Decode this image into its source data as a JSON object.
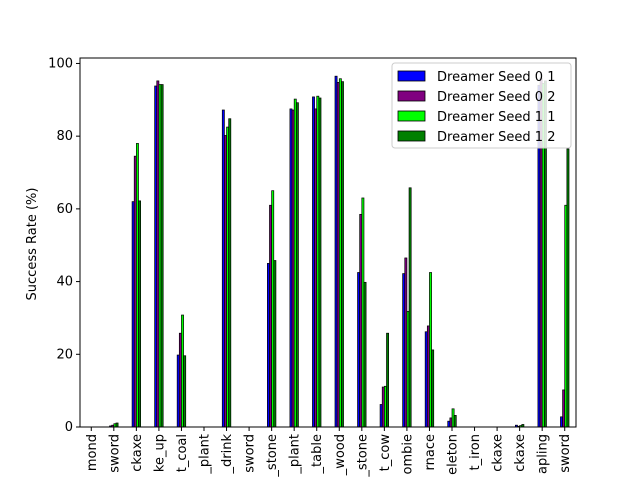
{
  "chart_data": {
    "type": "bar",
    "title": "",
    "xlabel": "",
    "ylabel": "Success Rate (%)",
    "ylim": [
      0,
      101.5
    ],
    "yticks": [
      0,
      20,
      40,
      60,
      80,
      100
    ],
    "grid": false,
    "legend_position": "top-right",
    "categories": [
      "mond",
      "sword",
      "ckaxe",
      "ke_up",
      "t_coal",
      "_plant",
      "_drink",
      "sword",
      "_stone",
      "_plant",
      "_table",
      "_wood",
      "_stone",
      "t_cow",
      "ombie",
      "rnace",
      "eleton",
      "t_iron",
      "ckaxe",
      "ckaxe",
      "apling",
      "sword"
    ],
    "series": [
      {
        "name": "Dreamer Seed 0 1",
        "color": "#0000ff",
        "values": [
          0,
          0.3,
          62,
          93.8,
          19.8,
          0,
          87.2,
          0,
          45,
          87.5,
          90.8,
          96.5,
          42.5,
          6.2,
          42.2,
          26.2,
          1.6,
          0,
          0,
          0.5,
          94,
          2.8
        ]
      },
      {
        "name": "Dreamer Seed 0 2",
        "color": "#800080",
        "values": [
          0,
          0.5,
          74.5,
          95.2,
          25.8,
          0,
          80.2,
          0,
          61,
          87.2,
          87.5,
          94.8,
          58.5,
          11,
          46.5,
          27.8,
          2.5,
          0,
          0,
          0.2,
          96,
          10.2
        ]
      },
      {
        "name": "Dreamer Seed 1 1",
        "color": "#00ff00",
        "values": [
          0,
          0.9,
          78,
          94.2,
          30.8,
          0,
          82.5,
          0,
          65,
          90.2,
          91,
          95.8,
          63,
          11.2,
          31.8,
          42.5,
          5,
          0,
          0,
          0.4,
          94.5,
          61
        ]
      },
      {
        "name": "Dreamer Seed 1 2",
        "color": "#008000",
        "values": [
          0,
          1.1,
          62.2,
          94.2,
          19.6,
          0,
          84.8,
          0,
          45.8,
          89.2,
          90.5,
          95,
          39.8,
          25.8,
          65.8,
          21.2,
          3.2,
          0,
          0,
          0.7,
          95.2,
          76.5
        ]
      }
    ]
  }
}
